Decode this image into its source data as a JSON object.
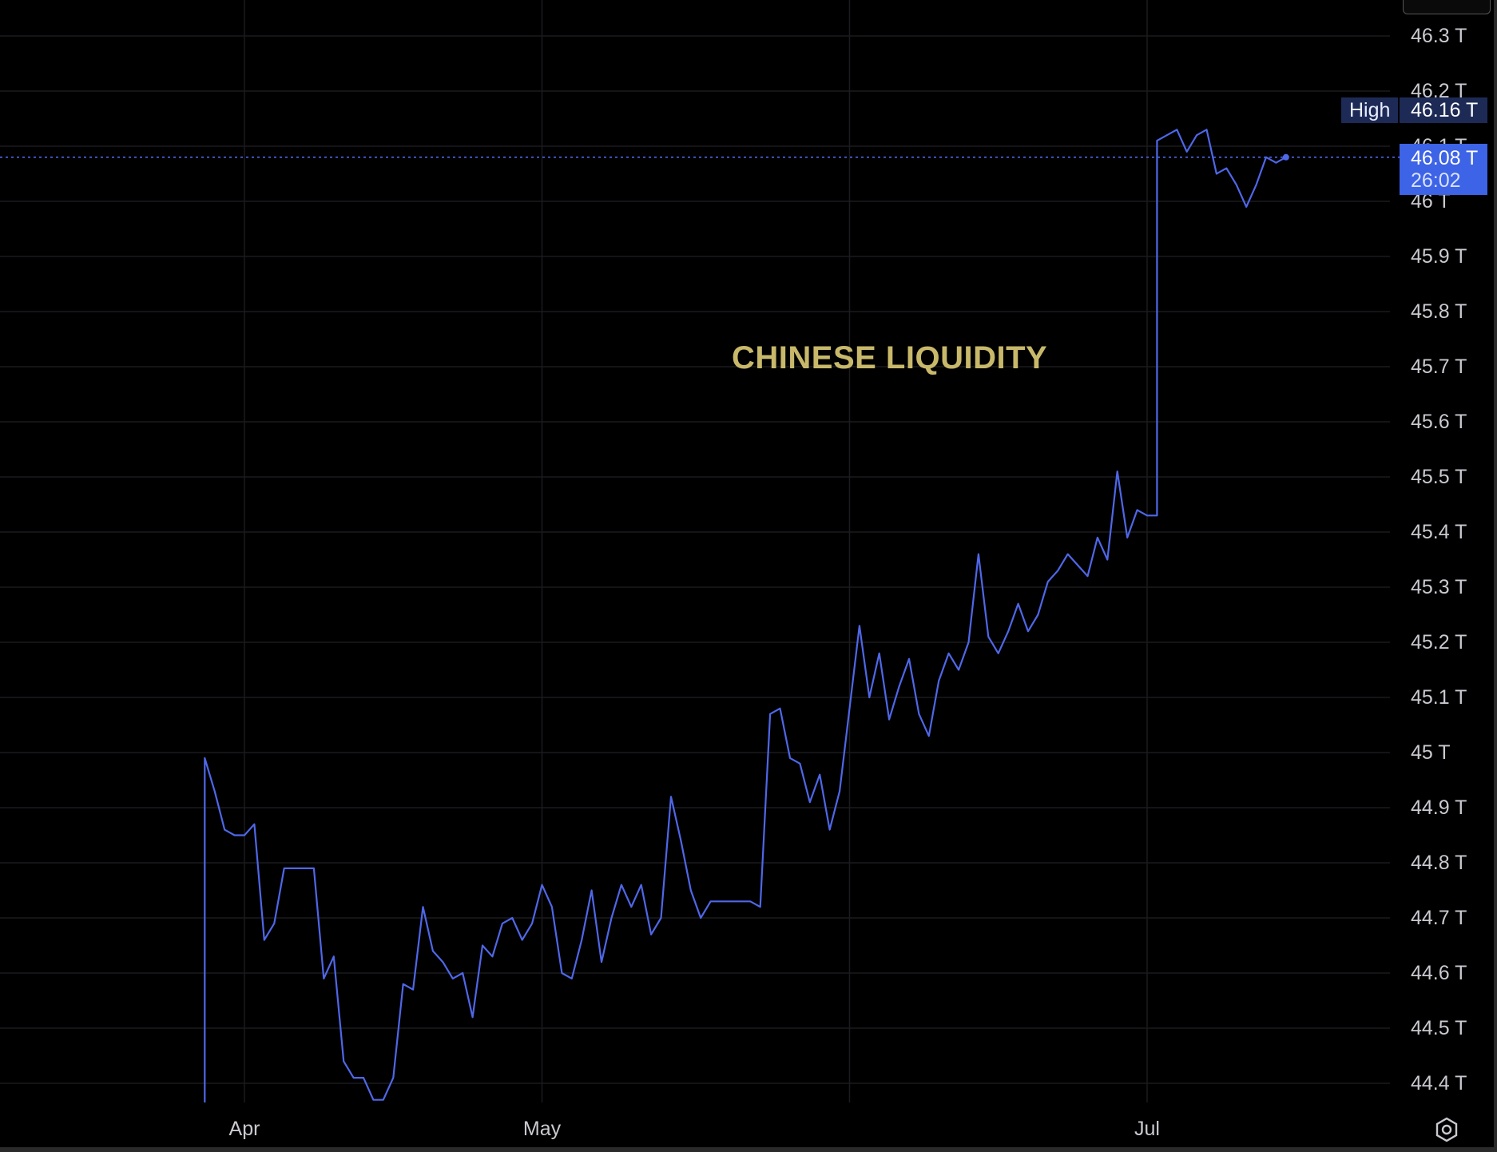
{
  "chart_data": {
    "type": "line",
    "title": "CHINESE LIQUIDITY",
    "xlabel": "",
    "ylabel": "",
    "unit": "T",
    "y_ticks": [
      "46.3 T",
      "46.2 T",
      "46.1 T",
      "46 T",
      "45.9 T",
      "45.8 T",
      "45.7 T",
      "45.6 T",
      "45.5 T",
      "45.4 T",
      "45.3 T",
      "45.2 T",
      "45.1 T",
      "45 T",
      "44.9 T",
      "44.8 T",
      "44.7 T",
      "44.6 T",
      "44.5 T",
      "44.4 T"
    ],
    "x_ticks": [
      "Apr",
      "May",
      "Jul"
    ],
    "ylim": [
      44.37,
      46.34
    ],
    "grid": true,
    "legend": "none",
    "high": {
      "label": "High",
      "value": "46.16 T"
    },
    "last_price": {
      "value": "46.08 T",
      "countdown": "26:02"
    },
    "line_color": "#4f67e8",
    "annotation_color": "#c8b86a",
    "series": [
      {
        "points": [
          [
            "03-28",
            44.35
          ],
          [
            "03-28",
            44.97
          ],
          [
            "03-28",
            44.99
          ],
          [
            "03-29",
            44.93
          ],
          [
            "03-30",
            44.86
          ],
          [
            "03-31",
            44.85
          ],
          [
            "04-01",
            44.85
          ],
          [
            "04-02",
            44.87
          ],
          [
            "04-03",
            44.66
          ],
          [
            "04-04",
            44.69
          ],
          [
            "04-05",
            44.79
          ],
          [
            "04-06",
            44.79
          ],
          [
            "04-07",
            44.79
          ],
          [
            "04-08",
            44.79
          ],
          [
            "04-09",
            44.59
          ],
          [
            "04-10",
            44.63
          ],
          [
            "04-11",
            44.44
          ],
          [
            "04-12",
            44.41
          ],
          [
            "04-13",
            44.41
          ],
          [
            "04-14",
            44.37
          ],
          [
            "04-15",
            44.37
          ],
          [
            "04-16",
            44.41
          ],
          [
            "04-17",
            44.58
          ],
          [
            "04-18",
            44.57
          ],
          [
            "04-19",
            44.72
          ],
          [
            "04-20",
            44.64
          ],
          [
            "04-21",
            44.62
          ],
          [
            "04-22",
            44.59
          ],
          [
            "04-23",
            44.6
          ],
          [
            "04-24",
            44.52
          ],
          [
            "04-25",
            44.65
          ],
          [
            "04-26",
            44.63
          ],
          [
            "04-27",
            44.69
          ],
          [
            "04-28",
            44.7
          ],
          [
            "04-29",
            44.66
          ],
          [
            "04-30",
            44.69
          ],
          [
            "05-01",
            44.76
          ],
          [
            "05-02",
            44.72
          ],
          [
            "05-03",
            44.6
          ],
          [
            "05-04",
            44.59
          ],
          [
            "05-05",
            44.66
          ],
          [
            "05-06",
            44.75
          ],
          [
            "05-07",
            44.62
          ],
          [
            "05-08",
            44.7
          ],
          [
            "05-09",
            44.76
          ],
          [
            "05-10",
            44.72
          ],
          [
            "05-11",
            44.76
          ],
          [
            "05-12",
            44.67
          ],
          [
            "05-13",
            44.7
          ],
          [
            "05-14",
            44.92
          ],
          [
            "05-15",
            44.84
          ],
          [
            "05-16",
            44.75
          ],
          [
            "05-17",
            44.7
          ],
          [
            "05-18",
            44.73
          ],
          [
            "05-19",
            44.73
          ],
          [
            "05-20",
            44.73
          ],
          [
            "05-21",
            44.73
          ],
          [
            "05-22",
            44.73
          ],
          [
            "05-23",
            44.72
          ],
          [
            "05-24",
            45.07
          ],
          [
            "05-25",
            45.08
          ],
          [
            "05-26",
            44.99
          ],
          [
            "05-27",
            44.98
          ],
          [
            "05-28",
            44.91
          ],
          [
            "05-29",
            44.96
          ],
          [
            "05-30",
            44.86
          ],
          [
            "05-31",
            44.93
          ],
          [
            "06-01",
            45.08
          ],
          [
            "06-02",
            45.23
          ],
          [
            "06-03",
            45.1
          ],
          [
            "06-04",
            45.18
          ],
          [
            "06-05",
            45.06
          ],
          [
            "06-06",
            45.12
          ],
          [
            "06-07",
            45.17
          ],
          [
            "06-08",
            45.07
          ],
          [
            "06-09",
            45.03
          ],
          [
            "06-10",
            45.13
          ],
          [
            "06-11",
            45.18
          ],
          [
            "06-12",
            45.15
          ],
          [
            "06-13",
            45.2
          ],
          [
            "06-14",
            45.36
          ],
          [
            "06-15",
            45.21
          ],
          [
            "06-16",
            45.18
          ],
          [
            "06-17",
            45.22
          ],
          [
            "06-18",
            45.27
          ],
          [
            "06-19",
            45.22
          ],
          [
            "06-20",
            45.25
          ],
          [
            "06-21",
            45.31
          ],
          [
            "06-22",
            45.33
          ],
          [
            "06-23",
            45.36
          ],
          [
            "06-24",
            45.34
          ],
          [
            "06-25",
            45.32
          ],
          [
            "06-26",
            45.39
          ],
          [
            "06-27",
            45.35
          ],
          [
            "06-28",
            45.51
          ],
          [
            "06-29",
            45.39
          ],
          [
            "06-30",
            45.44
          ],
          [
            "07-01",
            45.43
          ],
          [
            "07-02",
            45.43
          ],
          [
            "07-02",
            46.11
          ],
          [
            "07-03",
            46.12
          ],
          [
            "07-04",
            46.13
          ],
          [
            "07-05",
            46.09
          ],
          [
            "07-06",
            46.12
          ],
          [
            "07-07",
            46.13
          ],
          [
            "07-08",
            46.05
          ],
          [
            "07-09",
            46.06
          ],
          [
            "07-10",
            46.03
          ],
          [
            "07-11",
            45.99
          ],
          [
            "07-12",
            46.03
          ],
          [
            "07-13",
            46.08
          ],
          [
            "07-14",
            46.07
          ],
          [
            "07-15",
            46.08
          ]
        ]
      }
    ]
  },
  "axis_glyphs": {
    "settings_icon": "gear-icon"
  }
}
